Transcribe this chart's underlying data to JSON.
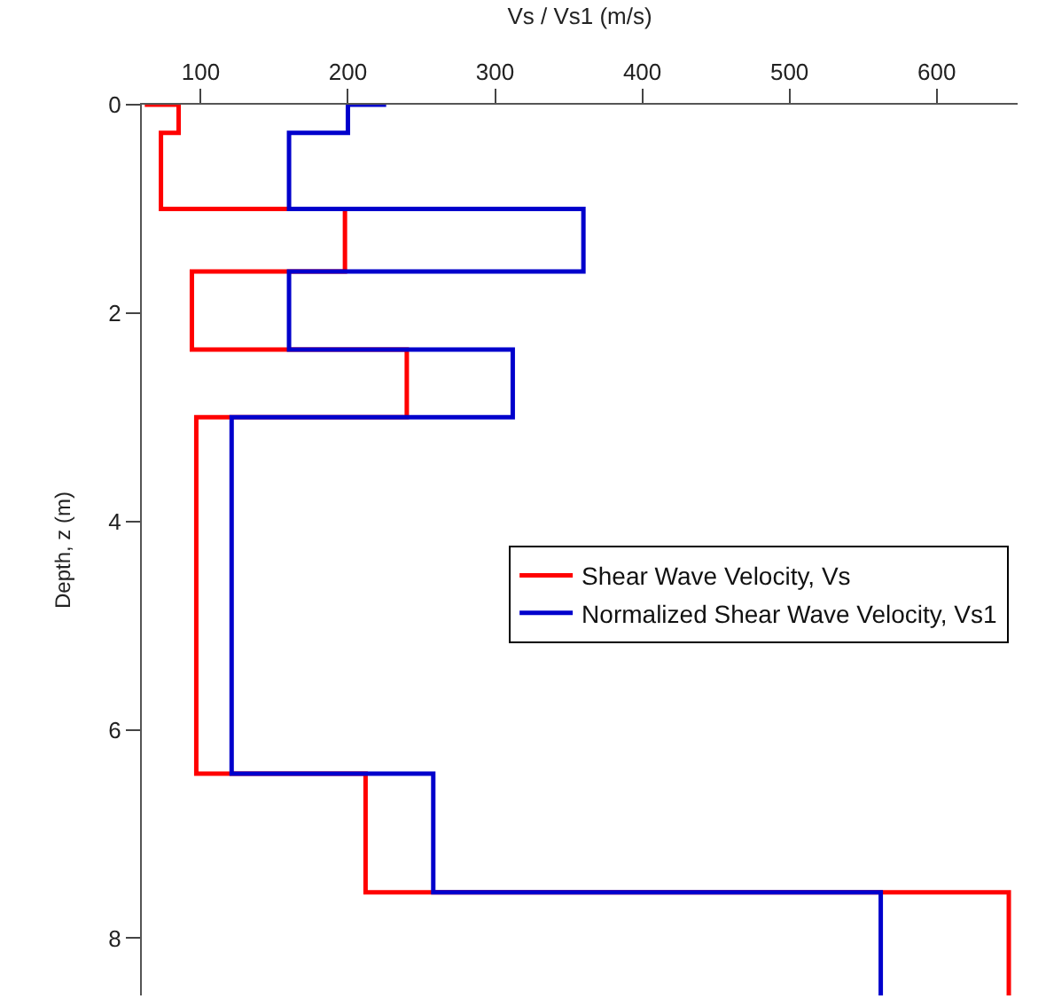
{
  "chart_data": {
    "type": "line",
    "xlabel": "Vs / Vs1 (m/s)",
    "ylabel": "Depth, z (m)",
    "xlim": [
      60,
      655
    ],
    "xticks": [
      100,
      200,
      300,
      400,
      500,
      600
    ],
    "ylim": [
      8.55,
      0
    ],
    "yticks": [
      0,
      2,
      4,
      6,
      8
    ],
    "legend": "right",
    "marker": "none",
    "line_style": "solid",
    "series": [
      {
        "name": "Shear Wave Velocity, Vs",
        "color": "#ff0000",
        "x": [
          62,
          85,
          85,
          73,
          73,
          198,
          198,
          94,
          94,
          240,
          240,
          97,
          97,
          212,
          212,
          649,
          649
        ],
        "values": [
          0,
          0,
          0.27,
          0.27,
          1.0,
          1.0,
          1.6,
          1.6,
          2.35,
          2.35,
          3.0,
          3.0,
          6.42,
          6.42,
          7.56,
          7.56,
          8.55
        ]
      },
      {
        "name": "Normalized Shear Wave Velocity, Vs1",
        "color": "#0000cc",
        "x": [
          226,
          200,
          200,
          160,
          160,
          360,
          360,
          160,
          160,
          312,
          312,
          121,
          121,
          258,
          258,
          562,
          562
        ],
        "values": [
          0,
          0,
          0.27,
          0.27,
          1.0,
          1.0,
          1.6,
          1.6,
          2.35,
          2.35,
          3.0,
          3.0,
          6.42,
          6.42,
          7.56,
          7.56,
          8.55
        ]
      }
    ]
  }
}
